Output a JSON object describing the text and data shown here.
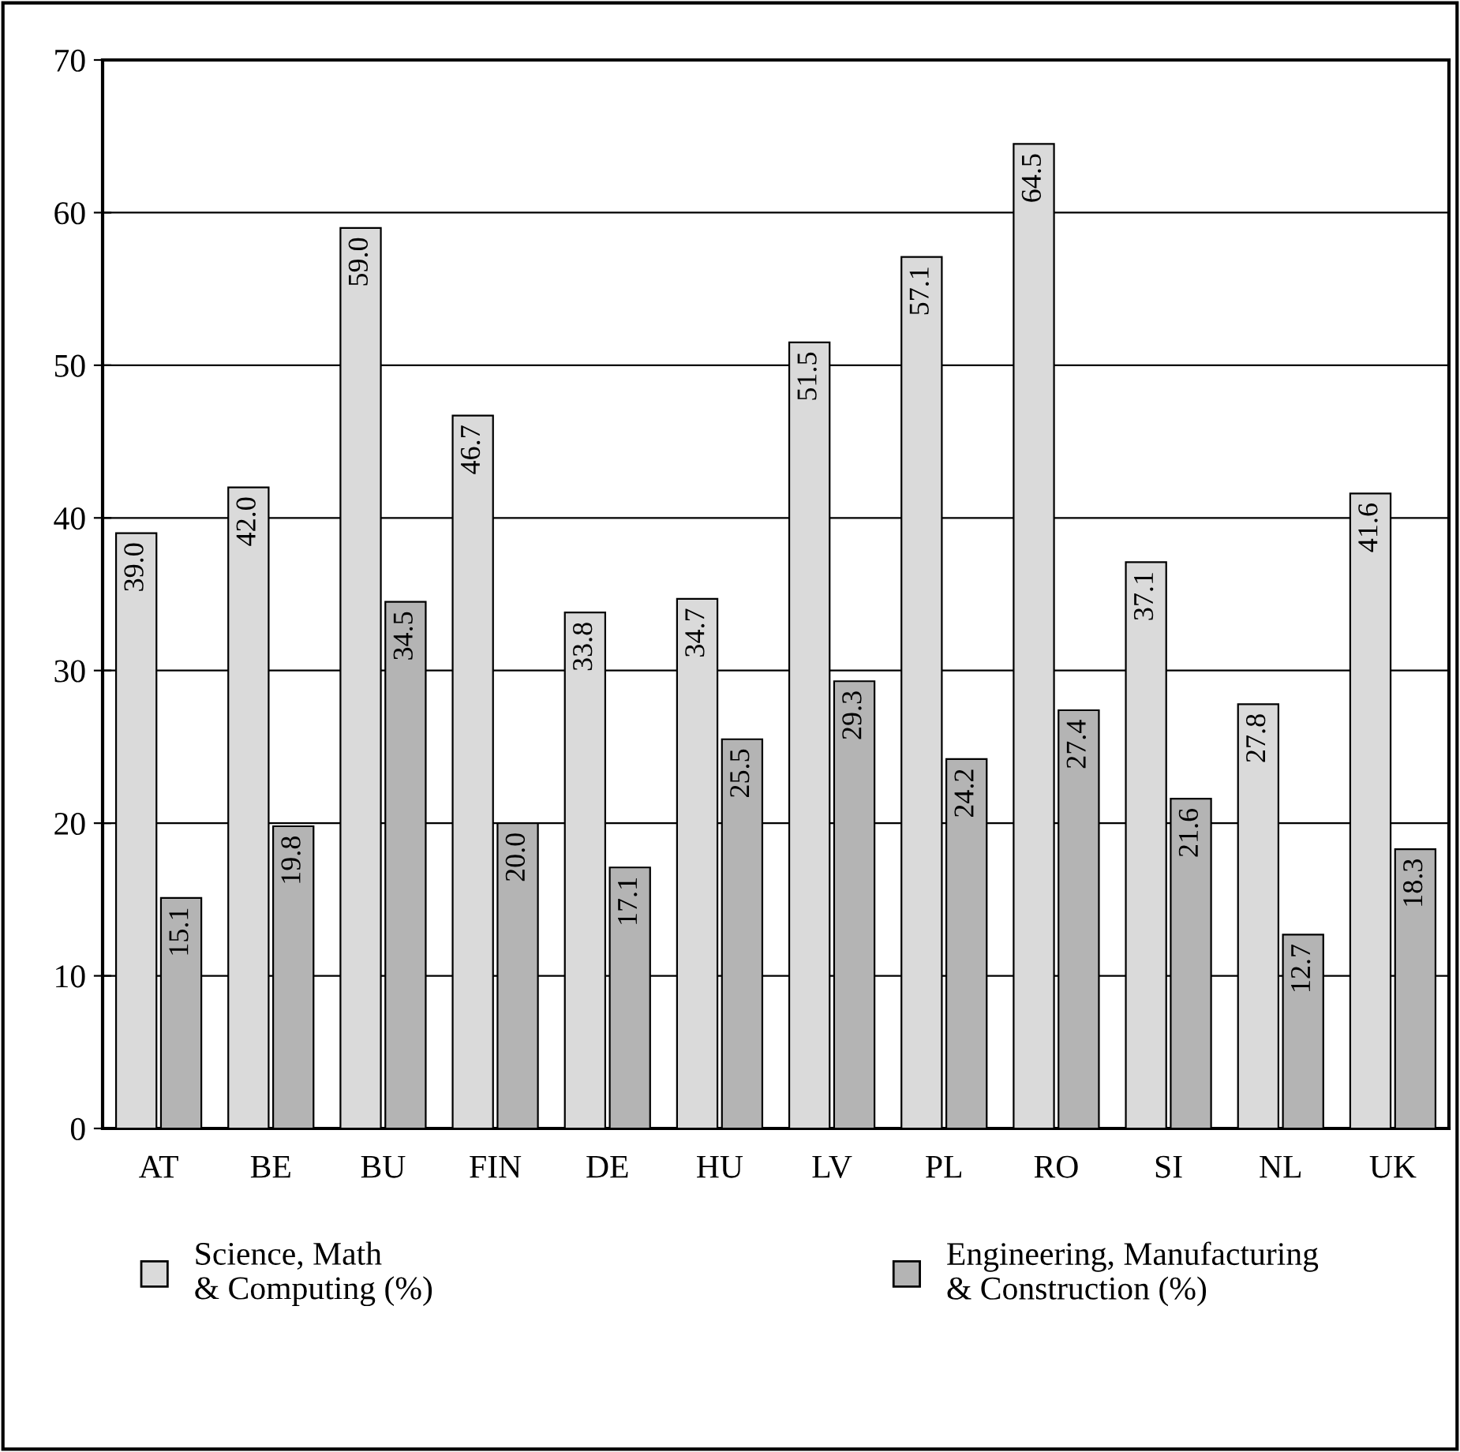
{
  "chart_data": {
    "type": "bar",
    "categories": [
      "AT",
      "BE",
      "BU",
      "FIN",
      "DE",
      "HU",
      "LV",
      "PL",
      "RO",
      "SI",
      "NL",
      "UK"
    ],
    "series": [
      {
        "name": "Science, Math\n& Computing (%)",
        "color": "#dadada",
        "values": [
          39.0,
          42.0,
          59.0,
          46.7,
          33.8,
          34.7,
          51.5,
          57.1,
          64.5,
          37.1,
          27.8,
          41.6
        ],
        "value_labels": [
          "39.0",
          "42.0",
          "59.0",
          "46.7",
          "33.8",
          "34.7",
          "51.5",
          "57.1",
          "64.5",
          "37.1",
          "27.8",
          "41.6"
        ]
      },
      {
        "name": "Engineering, Manufacturing\n& Construction (%)",
        "color": "#b4b4b4",
        "values": [
          15.1,
          19.8,
          34.5,
          20.0,
          17.1,
          25.5,
          29.3,
          24.2,
          27.4,
          21.6,
          12.7,
          18.3
        ],
        "value_labels": [
          "15.1",
          "19.8",
          "34.5",
          "20.0",
          "17.1",
          "25.5",
          "29.3",
          "24.2",
          "27.4",
          "21.6",
          "12.7",
          "18.3"
        ]
      }
    ],
    "ylim": [
      0,
      70
    ],
    "yticks": [
      0,
      10,
      20,
      30,
      40,
      50,
      60,
      70
    ],
    "grid": "y",
    "legend": "bottom"
  }
}
